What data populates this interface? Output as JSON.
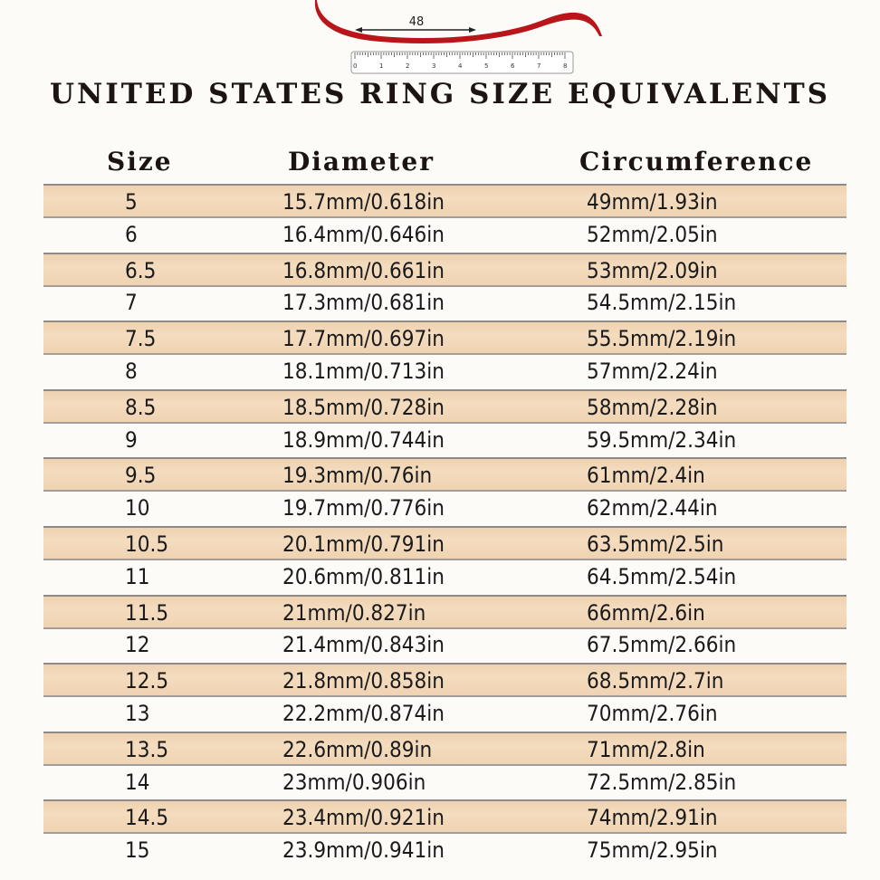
{
  "illustration": {
    "measure_label": "48",
    "ruler_numbers": [
      "0",
      "1",
      "2",
      "3",
      "4",
      "5",
      "6",
      "7",
      "8"
    ],
    "tape_color": "#b8161a"
  },
  "title": "UNITED STATES RING SIZE EQUIVALENTS",
  "headers": {
    "size": "Size",
    "diameter": "Diameter",
    "circumference": "Circumference"
  },
  "colors": {
    "band": "#f3dabd",
    "background": "#fdfbf7"
  },
  "rows": [
    {
      "size": "5",
      "diameter": "15.7mm/0.618in",
      "circumference": "49mm/1.93in"
    },
    {
      "size": "6",
      "diameter": "16.4mm/0.646in",
      "circumference": "52mm/2.05in"
    },
    {
      "size": "6.5",
      "diameter": "16.8mm/0.661in",
      "circumference": "53mm/2.09in"
    },
    {
      "size": "7",
      "diameter": "17.3mm/0.681in",
      "circumference": "54.5mm/2.15in"
    },
    {
      "size": "7.5",
      "diameter": "17.7mm/0.697in",
      "circumference": "55.5mm/2.19in"
    },
    {
      "size": "8",
      "diameter": "18.1mm/0.713in",
      "circumference": "57mm/2.24in"
    },
    {
      "size": "8.5",
      "diameter": "18.5mm/0.728in",
      "circumference": "58mm/2.28in"
    },
    {
      "size": "9",
      "diameter": "18.9mm/0.744in",
      "circumference": "59.5mm/2.34in"
    },
    {
      "size": "9.5",
      "diameter": "19.3mm/0.76in",
      "circumference": "61mm/2.4in"
    },
    {
      "size": "10",
      "diameter": "19.7mm/0.776in",
      "circumference": "62mm/2.44in"
    },
    {
      "size": "10.5",
      "diameter": "20.1mm/0.791in",
      "circumference": "63.5mm/2.5in"
    },
    {
      "size": "11",
      "diameter": "20.6mm/0.811in",
      "circumference": "64.5mm/2.54in"
    },
    {
      "size": "11.5",
      "diameter": "21mm/0.827in",
      "circumference": "66mm/2.6in"
    },
    {
      "size": "12",
      "diameter": "21.4mm/0.843in",
      "circumference": "67.5mm/2.66in"
    },
    {
      "size": "12.5",
      "diameter": "21.8mm/0.858in",
      "circumference": "68.5mm/2.7in"
    },
    {
      "size": "13",
      "diameter": "22.2mm/0.874in",
      "circumference": "70mm/2.76in"
    },
    {
      "size": "13.5",
      "diameter": "22.6mm/0.89in",
      "circumference": "71mm/2.8in"
    },
    {
      "size": "14",
      "diameter": "23mm/0.906in",
      "circumference": "72.5mm/2.85in"
    },
    {
      "size": "14.5",
      "diameter": "23.4mm/0.921in",
      "circumference": "74mm/2.91in"
    },
    {
      "size": "15",
      "diameter": "23.9mm/0.941in",
      "circumference": "75mm/2.95in"
    }
  ]
}
